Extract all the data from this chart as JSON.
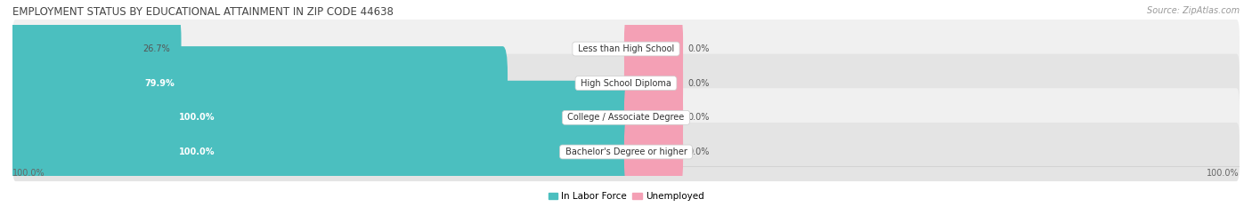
{
  "title": "EMPLOYMENT STATUS BY EDUCATIONAL ATTAINMENT IN ZIP CODE 44638",
  "source": "Source: ZipAtlas.com",
  "categories": [
    "Less than High School",
    "High School Diploma",
    "College / Associate Degree",
    "Bachelor's Degree or higher"
  ],
  "labor_force_pct": [
    26.7,
    79.9,
    100.0,
    100.0
  ],
  "unemployed_pct": [
    0.0,
    0.0,
    0.0,
    0.0
  ],
  "labor_force_color": "#4bbfbf",
  "unemployed_color": "#f4a0b5",
  "row_bg_light": "#f0f0f0",
  "row_bg_dark": "#e4e4e4",
  "legend_labor": "In Labor Force",
  "legend_unemployed": "Unemployed",
  "x_left_label": "100.0%",
  "x_right_label": "100.0%",
  "title_fontsize": 8.5,
  "source_fontsize": 7,
  "bar_label_fontsize": 7,
  "axis_label_fontsize": 7,
  "category_fontsize": 7,
  "legend_fontsize": 7.5,
  "label_inside_color": "#ffffff",
  "label_outside_color": "#555555"
}
